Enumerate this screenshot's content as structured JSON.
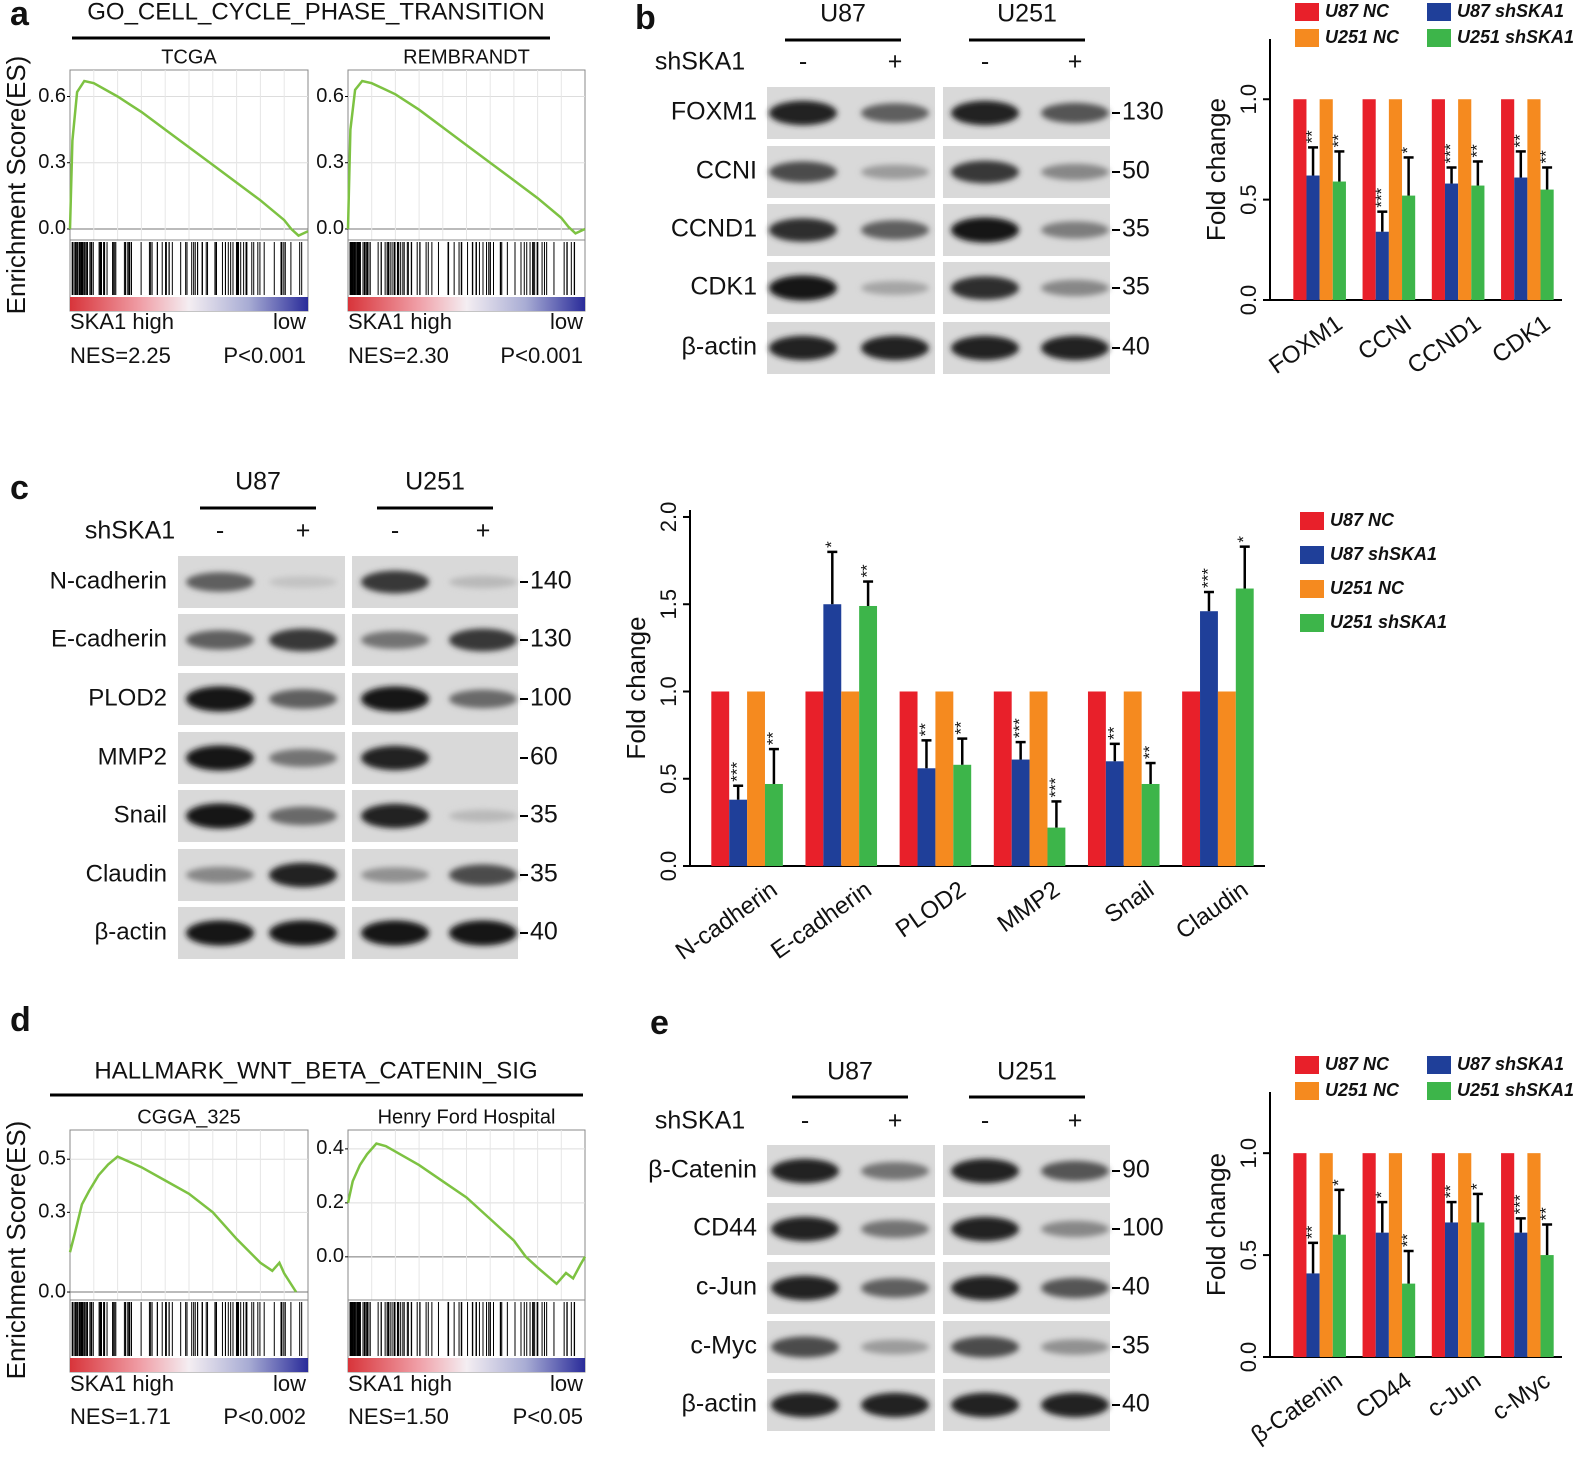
{
  "panels": [
    {
      "label": "a",
      "title": "GO_CELL_CYCLE_PHASE_TRANSITION",
      "ylabel": "Enrichment Score(ES)"
    },
    {
      "label": "d",
      "title": "HALLMARK_WNT_BETA_CATENIN_SIG",
      "ylabel": "Enrichment Score(ES)"
    }
  ],
  "blots": [
    {
      "label": "b",
      "cell_lines": [
        "U87",
        "U251"
      ],
      "treatment": "shSKA1",
      "lanes": [
        "-",
        "+",
        "-",
        "+"
      ],
      "proteins": [
        "FOXM1",
        "CCNI",
        "CCND1",
        "CDK1",
        "β-actin"
      ],
      "markers": [
        "130",
        "50",
        "35",
        "35",
        "40"
      ]
    },
    {
      "label": "c",
      "cell_lines": [
        "U87",
        "U251"
      ],
      "treatment": "shSKA1",
      "lanes": [
        "-",
        "+",
        "-",
        "+"
      ],
      "proteins": [
        "N-cadherin",
        "E-cadherin",
        "PLOD2",
        "MMP2",
        "Snail",
        "Claudin",
        "β-actin"
      ],
      "markers": [
        "140",
        "130",
        "100",
        "60",
        "35",
        "35",
        "40"
      ]
    },
    {
      "label": "e",
      "cell_lines": [
        "U87",
        "U251"
      ],
      "treatment": "shSKA1",
      "lanes": [
        "-",
        "+",
        "-",
        "+"
      ],
      "proteins": [
        "β-Catenin",
        "CD44",
        "c-Jun",
        "c-Myc",
        "β-actin"
      ],
      "markers": [
        "90",
        "100",
        "40",
        "35",
        "40"
      ]
    }
  ],
  "chart_data": [
    {
      "type": "line",
      "title": "TCGA",
      "color": "#7dc242",
      "grid": true,
      "x": [
        0,
        1,
        3,
        6,
        10,
        20,
        30,
        40,
        50,
        60,
        70,
        80,
        90,
        93,
        96,
        100
      ],
      "values": [
        0,
        0.4,
        0.62,
        0.67,
        0.66,
        0.6,
        0.53,
        0.45,
        0.37,
        0.29,
        0.21,
        0.13,
        0.04,
        0.0,
        -0.03,
        -0.01
      ],
      "xlim": [
        0,
        100
      ],
      "ylim": [
        -0.05,
        0.72
      ],
      "yticks": [
        {
          "value": 0,
          "label": "0.0"
        },
        0.3,
        0.6
      ],
      "left_label": "SKA1 high",
      "right_label": "low",
      "nes": "NES=2.25",
      "p": "P<0.001"
    },
    {
      "type": "line",
      "title": "REMBRANDT",
      "color": "#7dc242",
      "grid": true,
      "x": [
        0,
        1,
        3,
        6,
        10,
        20,
        30,
        40,
        50,
        60,
        70,
        80,
        90,
        93,
        96,
        100
      ],
      "values": [
        0,
        0.45,
        0.63,
        0.67,
        0.66,
        0.61,
        0.54,
        0.46,
        0.38,
        0.3,
        0.22,
        0.14,
        0.05,
        0.01,
        -0.02,
        0.0
      ],
      "xlim": [
        0,
        100
      ],
      "ylim": [
        -0.05,
        0.72
      ],
      "yticks": [
        {
          "value": 0,
          "label": "0.0"
        },
        0.3,
        0.6
      ],
      "left_label": "SKA1 high",
      "right_label": "low",
      "nes": "NES=2.30",
      "p": "P<0.001"
    },
    {
      "type": "bar",
      "ylabel": "Fold change",
      "legend": "top",
      "categories": [
        "FOXM1",
        "CCNI",
        "CCND1",
        "CDK1"
      ],
      "ylim": [
        0,
        1.3
      ],
      "yticks": [
        {
          "value": 0,
          "label": "0.0"
        },
        0.5,
        {
          "value": 1,
          "label": "1.0"
        }
      ],
      "series": [
        {
          "name": "U87 NC",
          "color": "#e8202a",
          "values": [
            1,
            1,
            1,
            1
          ]
        },
        {
          "name": "U87 shSKA1",
          "color": "#1f3f99",
          "values": [
            0.62,
            0.34,
            0.58,
            0.61
          ],
          "errors": [
            0.14,
            0.1,
            0.08,
            0.13
          ],
          "significance": [
            "**",
            "***",
            "***",
            "**"
          ]
        },
        {
          "name": "U251 NC",
          "color": "#f58a1f",
          "values": [
            1,
            1,
            1,
            1
          ]
        },
        {
          "name": "U251 shSKA1",
          "color": "#3db54a",
          "values": [
            0.59,
            0.52,
            0.57,
            0.55
          ],
          "errors": [
            0.15,
            0.19,
            0.12,
            0.11
          ],
          "significance": [
            "**",
            "*",
            "**",
            "**"
          ]
        }
      ]
    },
    {
      "type": "bar",
      "ylabel": "Fold change",
      "legend": "right",
      "categories": [
        "N-cadherin",
        "E-cadherin",
        "PLOD2",
        "MMP2",
        "Snail",
        "Claudin"
      ],
      "ylim": [
        0,
        2.04
      ],
      "yticks": [
        {
          "value": 0,
          "label": "0.0"
        },
        0.5,
        {
          "value": 1,
          "label": "1.0"
        },
        1.5,
        {
          "value": 2,
          "label": "2.0"
        }
      ],
      "series": [
        {
          "name": "U87 NC",
          "color": "#e8202a",
          "values": [
            1,
            1,
            1,
            1,
            1,
            1
          ]
        },
        {
          "name": "U87 shSKA1",
          "color": "#1f3f99",
          "values": [
            0.38,
            1.5,
            0.56,
            0.61,
            0.6,
            1.46
          ],
          "errors": [
            0.08,
            0.3,
            0.16,
            0.1,
            0.1,
            0.11
          ],
          "significance": [
            "***",
            "*",
            "**",
            "***",
            "**",
            "***"
          ]
        },
        {
          "name": "U251 NC",
          "color": "#f58a1f",
          "values": [
            1,
            1,
            1,
            1,
            1,
            1
          ]
        },
        {
          "name": "U251 shSKA1",
          "color": "#3db54a",
          "values": [
            0.47,
            1.49,
            0.58,
            0.22,
            0.47,
            1.59
          ],
          "errors": [
            0.2,
            0.14,
            0.15,
            0.15,
            0.12,
            0.24
          ],
          "significance": [
            "**",
            "**",
            "**",
            "***",
            "**",
            "*"
          ]
        }
      ]
    },
    {
      "type": "line",
      "title": "CGGA_325",
      "color": "#7dc242",
      "grid": true,
      "x": [
        0,
        2,
        5,
        8,
        12,
        16,
        20,
        25,
        30,
        40,
        50,
        60,
        70,
        80,
        85,
        88,
        90,
        95
      ],
      "values": [
        0.15,
        0.22,
        0.33,
        0.38,
        0.44,
        0.48,
        0.51,
        0.49,
        0.47,
        0.42,
        0.37,
        0.3,
        0.2,
        0.11,
        0.08,
        0.11,
        0.07,
        0.0
      ],
      "xlim": [
        0,
        100
      ],
      "ylim": [
        -0.03,
        0.61
      ],
      "yticks": [
        {
          "value": 0,
          "label": "0.0"
        },
        0.3,
        0.5
      ],
      "left_label": "SKA1 high",
      "right_label": "low",
      "nes": "NES=1.71",
      "p": "P<0.002"
    },
    {
      "type": "line",
      "title": "Henry Ford Hospital",
      "color": "#7dc242",
      "grid": true,
      "x": [
        0,
        2,
        5,
        8,
        12,
        16,
        20,
        30,
        40,
        50,
        60,
        70,
        75,
        80,
        88,
        92,
        95,
        98,
        100
      ],
      "values": [
        0.2,
        0.28,
        0.34,
        0.38,
        0.42,
        0.41,
        0.39,
        0.34,
        0.28,
        0.22,
        0.14,
        0.06,
        0.0,
        -0.04,
        -0.1,
        -0.06,
        -0.08,
        -0.03,
        0.0
      ],
      "xlim": [
        0,
        100
      ],
      "ylim": [
        -0.16,
        0.47
      ],
      "yticks": [
        {
          "value": 0,
          "label": "0.0"
        },
        0.2,
        0.4
      ],
      "left_label": "SKA1 high",
      "right_label": "low",
      "nes": "NES=1.50",
      "p": "P<0.05"
    },
    {
      "type": "bar",
      "ylabel": "Fold change",
      "legend": "top",
      "categories": [
        "β-Catenin",
        "CD44",
        "c-Jun",
        "c-Myc"
      ],
      "ylim": [
        0,
        1.3
      ],
      "yticks": [
        {
          "value": 0,
          "label": "0.0"
        },
        0.5,
        {
          "value": 1,
          "label": "1.0"
        }
      ],
      "series": [
        {
          "name": "U87 NC",
          "color": "#e8202a",
          "values": [
            1,
            1,
            1,
            1
          ]
        },
        {
          "name": "U87 shSKA1",
          "color": "#1f3f99",
          "values": [
            0.41,
            0.61,
            0.66,
            0.61
          ],
          "errors": [
            0.15,
            0.15,
            0.1,
            0.07
          ],
          "significance": [
            "**",
            "*",
            "**",
            "***"
          ]
        },
        {
          "name": "U251 NC",
          "color": "#f58a1f",
          "values": [
            1,
            1,
            1,
            1
          ]
        },
        {
          "name": "U251 shSKA1",
          "color": "#3db54a",
          "values": [
            0.6,
            0.36,
            0.66,
            0.5
          ],
          "errors": [
            0.22,
            0.16,
            0.14,
            0.15
          ],
          "significance": [
            "*",
            "**",
            "*",
            "**"
          ]
        }
      ]
    }
  ]
}
